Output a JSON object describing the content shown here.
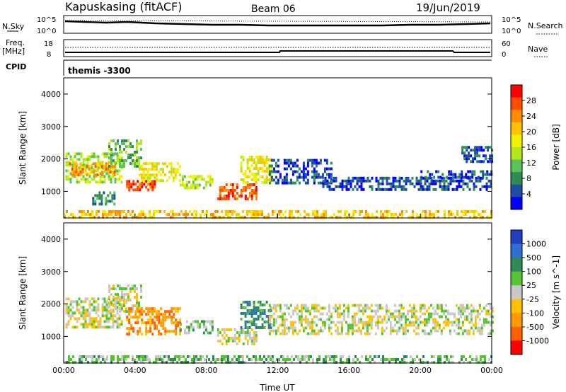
{
  "header": {
    "title": "Kapuskasing (fitACF)",
    "beam": "Beam 06",
    "date": "19/Jun/2019"
  },
  "top_panels": {
    "nsky_label": "N.Sky",
    "nsky_ticks": [
      "10^5",
      "10^0"
    ],
    "nsearch_label": "N.Search",
    "nsearch_ticks": [
      "10^5",
      "10^0"
    ],
    "freq_label": "Freq.",
    "freq_unit": "[MHz]",
    "freq_ticks": [
      "18",
      "8"
    ],
    "nave_label": "Nave",
    "nave_ticks": [
      "60",
      "0"
    ],
    "cpid_label": "CPID",
    "cpid_value": "themis -3300"
  },
  "chart_data": [
    {
      "type": "heatmap",
      "name": "power",
      "ylabel": "Slant Range [km]",
      "xlabel": "Time UT",
      "x_ticks": [
        "00:00",
        "04:00",
        "08:00",
        "12:00",
        "16:00",
        "20:00",
        "00:00"
      ],
      "xlim": [
        0,
        24
      ],
      "y_ticks": [
        1000,
        2000,
        3000,
        4000
      ],
      "ylim": [
        180,
        4500
      ],
      "colorbar": {
        "label": "Power [dB]",
        "ticks": [
          "28",
          "24",
          "20",
          "16",
          "12",
          "8",
          "4"
        ],
        "colors": [
          "#ff0000",
          "#ff4d00",
          "#ff8c00",
          "#ffc200",
          "#f2f200",
          "#b5e61d",
          "#5ac25a",
          "#2e8b57",
          "#1c4fa0",
          "#0000ff"
        ]
      },
      "regions": [
        {
          "x0": 0.1,
          "x1": 3.3,
          "y0": 1300,
          "y1": 2200,
          "level": 5
        },
        {
          "x0": 0.3,
          "x1": 2.8,
          "y0": 1500,
          "y1": 1900,
          "level": 2
        },
        {
          "x0": 2.5,
          "x1": 4.4,
          "y0": 1750,
          "y1": 2600,
          "level": 6
        },
        {
          "x0": 1.6,
          "x1": 2.9,
          "y0": 650,
          "y1": 1000,
          "level": 7
        },
        {
          "x0": 3.5,
          "x1": 5.1,
          "y0": 1050,
          "y1": 1350,
          "level": 1
        },
        {
          "x0": 4.2,
          "x1": 6.5,
          "y0": 1350,
          "y1": 1900,
          "level": 4
        },
        {
          "x0": 6.5,
          "x1": 8.3,
          "y0": 1100,
          "y1": 1500,
          "level": 5
        },
        {
          "x0": 8.6,
          "x1": 10.8,
          "y0": 800,
          "y1": 1250,
          "level": 1
        },
        {
          "x0": 9.9,
          "x1": 11.6,
          "y0": 1300,
          "y1": 2100,
          "level": 4
        },
        {
          "x0": 11.5,
          "x1": 15.0,
          "y0": 1300,
          "y1": 2000,
          "level": 8
        },
        {
          "x0": 14.5,
          "x1": 24.0,
          "y0": 1100,
          "y1": 1450,
          "level": 8
        },
        {
          "x0": 20.0,
          "x1": 24.0,
          "y0": 1450,
          "y1": 1650,
          "level": 8
        },
        {
          "x0": 22.3,
          "x1": 24.0,
          "y0": 1900,
          "y1": 2400,
          "level": 8
        },
        {
          "x0": 0.0,
          "x1": 24.0,
          "y0": 180,
          "y1": 420,
          "level": 3
        }
      ]
    },
    {
      "type": "heatmap",
      "name": "velocity",
      "ylabel": "Slant Range [km]",
      "xlabel": "Time UT",
      "x_ticks": [
        "00:00",
        "04:00",
        "08:00",
        "12:00",
        "16:00",
        "20:00",
        "00:00"
      ],
      "xlim": [
        0,
        24
      ],
      "y_ticks": [
        1000,
        2000,
        3000,
        4000
      ],
      "ylim": [
        180,
        4500
      ],
      "colorbar": {
        "label": "Velocity [m s^-1]",
        "ticks": [
          "1000",
          "500",
          "100",
          "25",
          "-25",
          "-100",
          "-500",
          "-1000"
        ],
        "colors": [
          "#1f3fbf",
          "#2f6fd0",
          "#2e8b57",
          "#55c434",
          "#c8c8c8",
          "#ffc200",
          "#ff9a00",
          "#ff6000",
          "#ff0000"
        ]
      },
      "regions": [
        {
          "x0": 0.1,
          "x1": 3.3,
          "y0": 1300,
          "y1": 2200,
          "level": 4
        },
        {
          "x0": 2.5,
          "x1": 4.4,
          "y0": 1750,
          "y1": 2600,
          "level": 4
        },
        {
          "x0": 3.5,
          "x1": 6.5,
          "y0": 1050,
          "y1": 1900,
          "level": 6
        },
        {
          "x0": 6.5,
          "x1": 8.3,
          "y0": 1100,
          "y1": 1500,
          "level": 3
        },
        {
          "x0": 8.6,
          "x1": 10.8,
          "y0": 800,
          "y1": 1250,
          "level": 4
        },
        {
          "x0": 9.9,
          "x1": 11.6,
          "y0": 1300,
          "y1": 2100,
          "level": 2
        },
        {
          "x0": 11.5,
          "x1": 24.0,
          "y0": 1100,
          "y1": 2000,
          "level": 4
        },
        {
          "x0": 0.0,
          "x1": 24.0,
          "y0": 180,
          "y1": 420,
          "level": 3
        }
      ]
    }
  ]
}
